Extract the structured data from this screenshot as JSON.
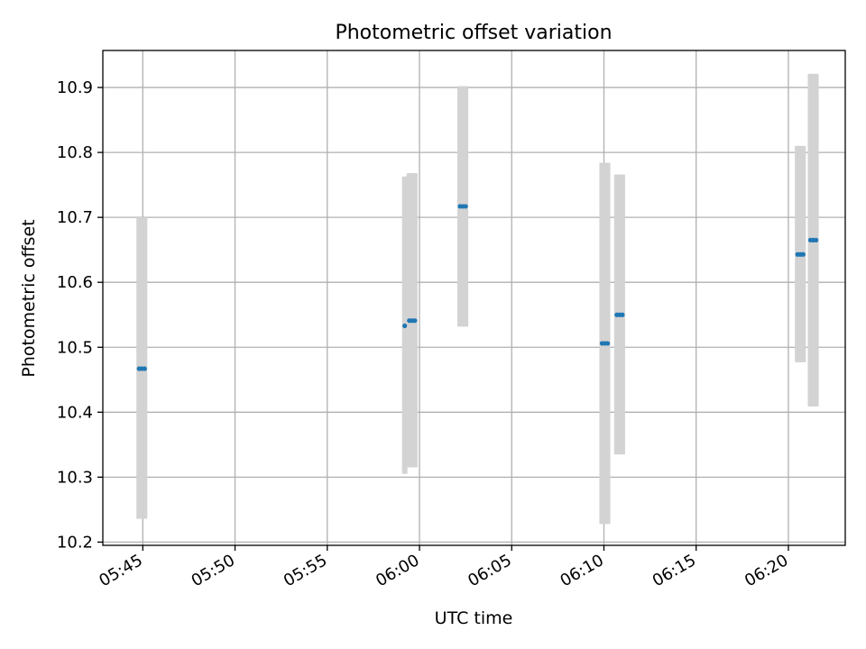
{
  "chart_data": {
    "type": "scatter",
    "title": "Photometric offset variation",
    "xlabel": "UTC time",
    "ylabel": "Photometric offset",
    "x_ticks": [
      "05:45",
      "05:50",
      "05:55",
      "06:00",
      "06:05",
      "06:10",
      "06:15",
      "06:20"
    ],
    "y_ticks": [
      "10.2",
      "10.3",
      "10.4",
      "10.5",
      "10.6",
      "10.7",
      "10.8",
      "10.9"
    ],
    "xlim": [
      "05:42:50",
      "06:23:05"
    ],
    "ylim": [
      10.195,
      10.957
    ],
    "grid": true,
    "colors": {
      "point": "#1f77b4",
      "error_bar": "#d3d3d3",
      "grid": "#b0b0b0"
    },
    "series": [
      {
        "points": [
          {
            "time": "05:44:48",
            "offset": 10.467,
            "low": 10.236,
            "high": 10.7
          },
          {
            "time": "05:44:57",
            "offset": 10.467,
            "low": 10.236,
            "high": 10.7
          },
          {
            "time": "05:45:06",
            "offset": 10.467,
            "low": 10.236,
            "high": 10.7
          },
          {
            "time": "05:59:12",
            "offset": 10.533,
            "low": 10.305,
            "high": 10.763
          },
          {
            "time": "05:59:27",
            "offset": 10.541,
            "low": 10.315,
            "high": 10.768
          },
          {
            "time": "05:59:36",
            "offset": 10.541,
            "low": 10.315,
            "high": 10.768
          },
          {
            "time": "05:59:45",
            "offset": 10.541,
            "low": 10.315,
            "high": 10.768
          },
          {
            "time": "06:02:12",
            "offset": 10.717,
            "low": 10.532,
            "high": 10.902
          },
          {
            "time": "06:02:21",
            "offset": 10.717,
            "low": 10.532,
            "high": 10.902
          },
          {
            "time": "06:02:30",
            "offset": 10.717,
            "low": 10.532,
            "high": 10.902
          },
          {
            "time": "06:09:54",
            "offset": 10.506,
            "low": 10.228,
            "high": 10.784
          },
          {
            "time": "06:10:03",
            "offset": 10.506,
            "low": 10.228,
            "high": 10.784
          },
          {
            "time": "06:10:12",
            "offset": 10.506,
            "low": 10.228,
            "high": 10.784
          },
          {
            "time": "06:10:42",
            "offset": 10.55,
            "low": 10.335,
            "high": 10.766
          },
          {
            "time": "06:10:51",
            "offset": 10.55,
            "low": 10.335,
            "high": 10.766
          },
          {
            "time": "06:11:00",
            "offset": 10.55,
            "low": 10.335,
            "high": 10.766
          },
          {
            "time": "06:20:30",
            "offset": 10.643,
            "low": 10.477,
            "high": 10.81
          },
          {
            "time": "06:20:39",
            "offset": 10.643,
            "low": 10.477,
            "high": 10.81
          },
          {
            "time": "06:20:48",
            "offset": 10.643,
            "low": 10.477,
            "high": 10.81
          },
          {
            "time": "06:21:12",
            "offset": 10.665,
            "low": 10.409,
            "high": 10.921
          },
          {
            "time": "06:21:21",
            "offset": 10.665,
            "low": 10.409,
            "high": 10.921
          },
          {
            "time": "06:21:30",
            "offset": 10.665,
            "low": 10.409,
            "high": 10.921
          }
        ]
      }
    ]
  }
}
